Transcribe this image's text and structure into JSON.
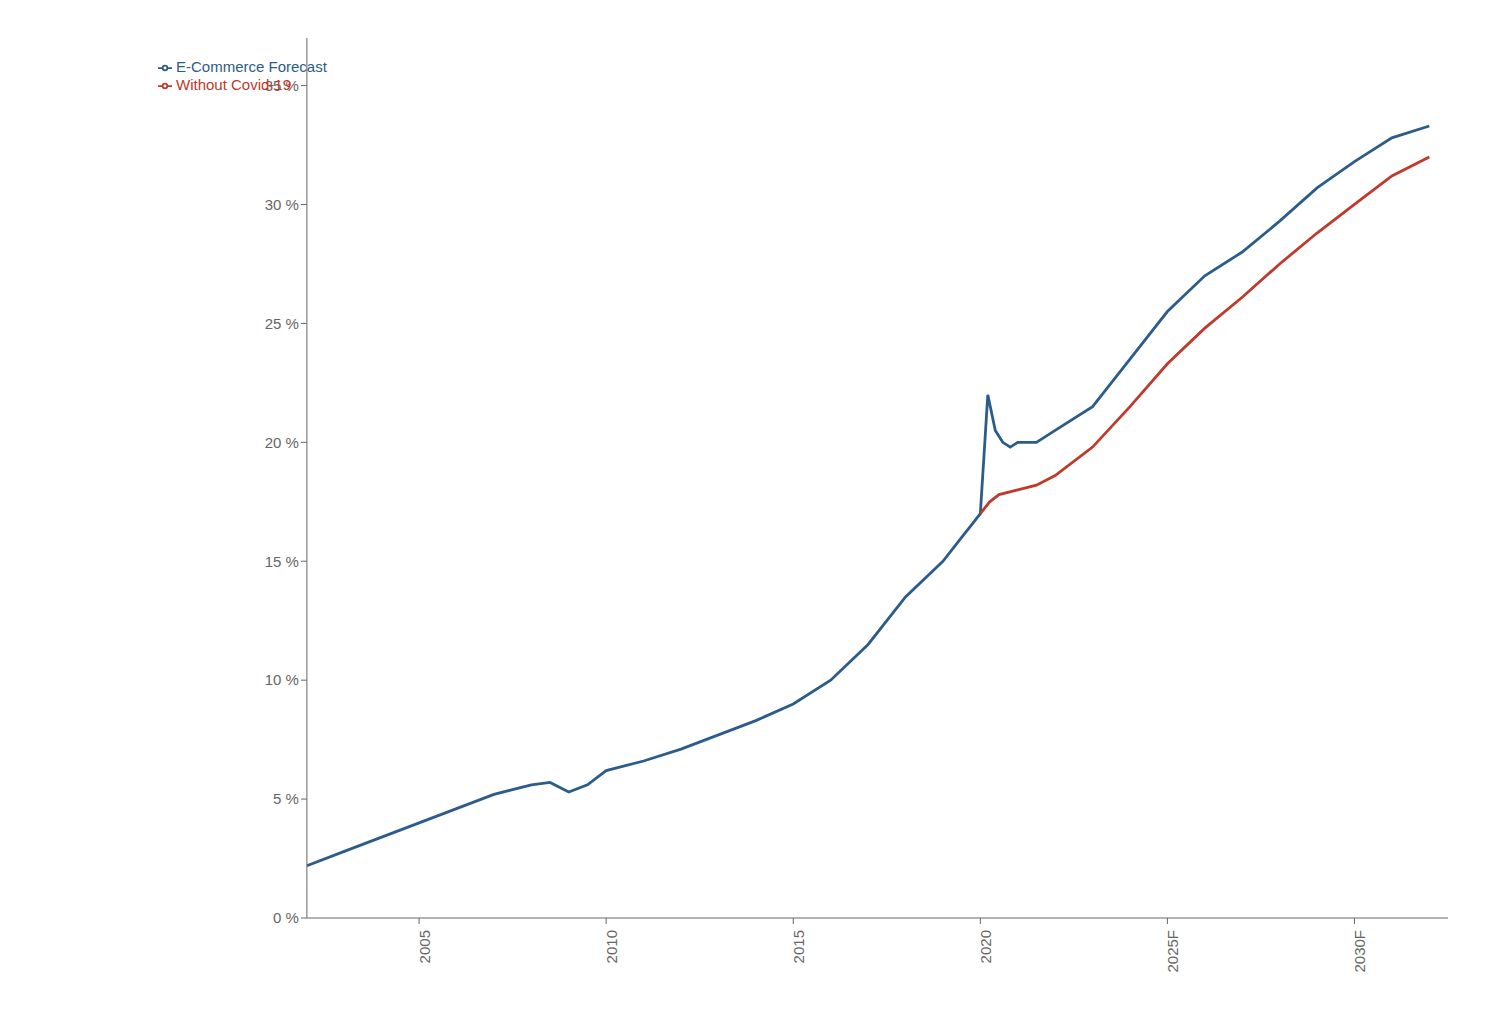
{
  "chart_data": {
    "type": "line",
    "xlim": [
      2002,
      2032.5
    ],
    "xticks": [
      2005,
      2010,
      2015,
      2020,
      {
        "value": 2025,
        "label": "2025F"
      },
      {
        "value": 2030,
        "label": "2030F"
      }
    ],
    "ylim": [
      0,
      0.37
    ],
    "yticks": [
      {
        "value": 0.0,
        "label": "0 %"
      },
      {
        "value": 0.05,
        "label": "5 %"
      },
      {
        "value": 0.1,
        "label": "10 %"
      },
      {
        "value": 0.15,
        "label": "15 %"
      },
      {
        "value": 0.2,
        "label": "20 %"
      },
      {
        "value": 0.25,
        "label": "25 %"
      },
      {
        "value": 0.3,
        "label": "30 %"
      },
      {
        "value": 0.35,
        "label": "35 %"
      }
    ],
    "grid": false,
    "legend": "upper left",
    "series": [
      {
        "name": "E-Commerce Forecast",
        "color": "#2b5c8a",
        "x": [
          2002,
          2003,
          2004,
          2005,
          2006,
          2007,
          2008,
          2008.5,
          2009,
          2009.5,
          2010,
          2011,
          2012,
          2013,
          2014,
          2015,
          2016,
          2017,
          2018,
          2019,
          2019.25,
          2019.5,
          2019.75,
          2020.0,
          2020.2,
          2020.4,
          2020.6,
          2020.8,
          2021.0,
          2021.5,
          2022,
          2023,
          2024,
          2025,
          2026,
          2027,
          2028,
          2029,
          2030,
          2031,
          2032
        ],
        "values": [
          0.022,
          0.028,
          0.034,
          0.04,
          0.046,
          0.052,
          0.056,
          0.057,
          0.053,
          0.056,
          0.062,
          0.066,
          0.071,
          0.077,
          0.083,
          0.09,
          0.1,
          0.115,
          0.135,
          0.15,
          0.155,
          0.16,
          0.165,
          0.17,
          0.22,
          0.205,
          0.2,
          0.198,
          0.2,
          0.2,
          0.205,
          0.215,
          0.235,
          0.255,
          0.27,
          0.28,
          0.293,
          0.307,
          0.318,
          0.328,
          0.333
        ]
      },
      {
        "name": "Without Covid-19",
        "color": "#c0392b",
        "x": [
          2020.0,
          2020.25,
          2020.5,
          2021.0,
          2021.5,
          2022,
          2023,
          2024,
          2025,
          2026,
          2027,
          2028,
          2029,
          2030,
          2031,
          2032
        ],
        "values": [
          0.17,
          0.175,
          0.178,
          0.18,
          0.182,
          0.186,
          0.198,
          0.215,
          0.233,
          0.248,
          0.261,
          0.275,
          0.288,
          0.3,
          0.312,
          0.32
        ]
      }
    ]
  }
}
